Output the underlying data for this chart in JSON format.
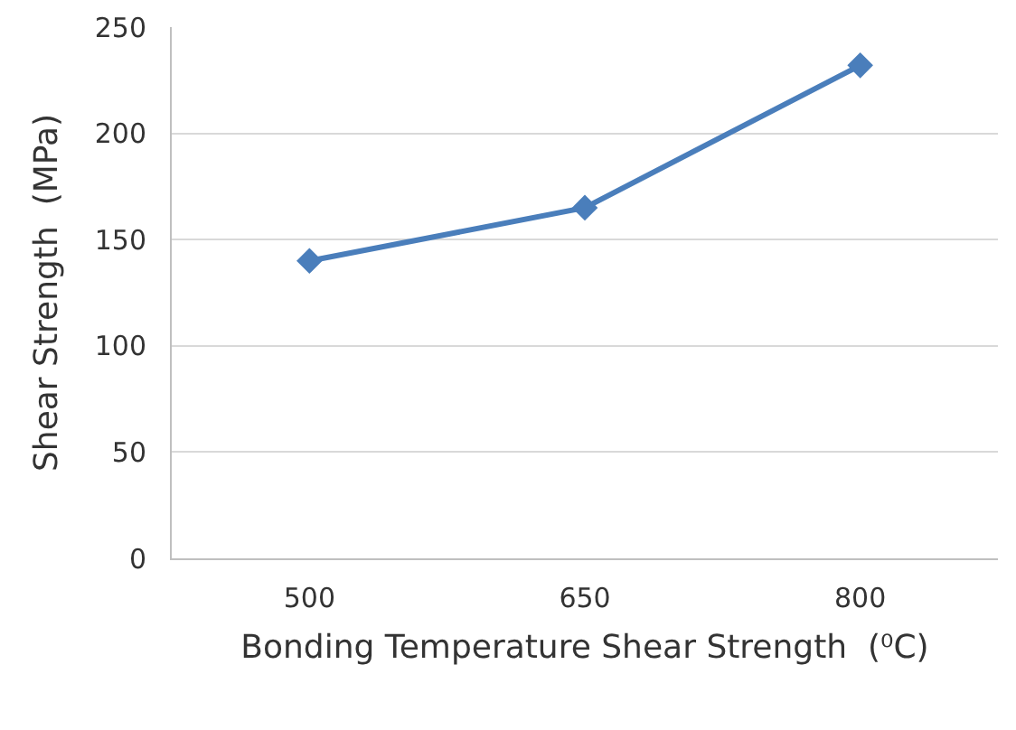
{
  "chart_data": {
    "type": "line",
    "xlabel": "Bonding Temperature Shear Strength  (⁰C)",
    "ylabel": "Shear Strength  (MPa)",
    "categories": [
      "500",
      "650",
      "800"
    ],
    "series": [
      {
        "color": "#4a7ebb",
        "values": [
          140,
          165,
          232
        ]
      }
    ],
    "ylim": [
      0,
      250
    ],
    "yticks": [
      0,
      50,
      100,
      150,
      200,
      250
    ],
    "grid": "y",
    "legend": false,
    "marker": "diamond",
    "line_style": "solid"
  }
}
